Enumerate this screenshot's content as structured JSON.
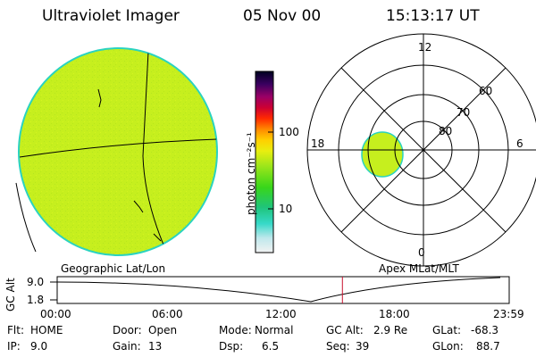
{
  "header": {
    "title": "Ultraviolet Imager",
    "date": "05 Nov 00",
    "time": "15:13:17 UT"
  },
  "globe_panel": {
    "caption": "Geographic Lat/Lon"
  },
  "colorbar": {
    "unit_label": "photon cm⁻²s⁻¹",
    "tick_labels": [
      "100",
      "10"
    ]
  },
  "polar_panel": {
    "caption": "Apex MLat/MLT",
    "mlt_labels": {
      "top": "12",
      "left": "18",
      "right": "6",
      "bottom": "0"
    },
    "lat_labels": [
      "60",
      "70",
      "80"
    ]
  },
  "timeline": {
    "y_label": "GC Alt",
    "y_ticks": [
      "9.0",
      "1.8"
    ],
    "x_ticks": [
      "00:00",
      "06:00",
      "12:00",
      "18:00",
      "23:59"
    ],
    "current_time_fraction": 0.631
  },
  "footer": {
    "row1": [
      {
        "key": "Flt:",
        "value": "HOME"
      },
      {
        "key": "Door:",
        "value": "Open"
      },
      {
        "key": "Mode:",
        "value": "Normal"
      },
      {
        "key": "GC Alt:",
        "value": "2.9 Re"
      },
      {
        "key": "GLat:",
        "value": "-68.3"
      }
    ],
    "row2": [
      {
        "key": "IP:",
        "value": "9.0"
      },
      {
        "key": "Gain:",
        "value": "13"
      },
      {
        "key": "Dsp:",
        "value": "6.5"
      },
      {
        "key": "Seq:",
        "value": "39"
      },
      {
        "key": "GLon:",
        "value": "88.7"
      }
    ]
  },
  "colors": {
    "disk_fill": "#c6ef1e",
    "disk_edge": "#2ad3c0",
    "time_marker": "#c8102e"
  }
}
